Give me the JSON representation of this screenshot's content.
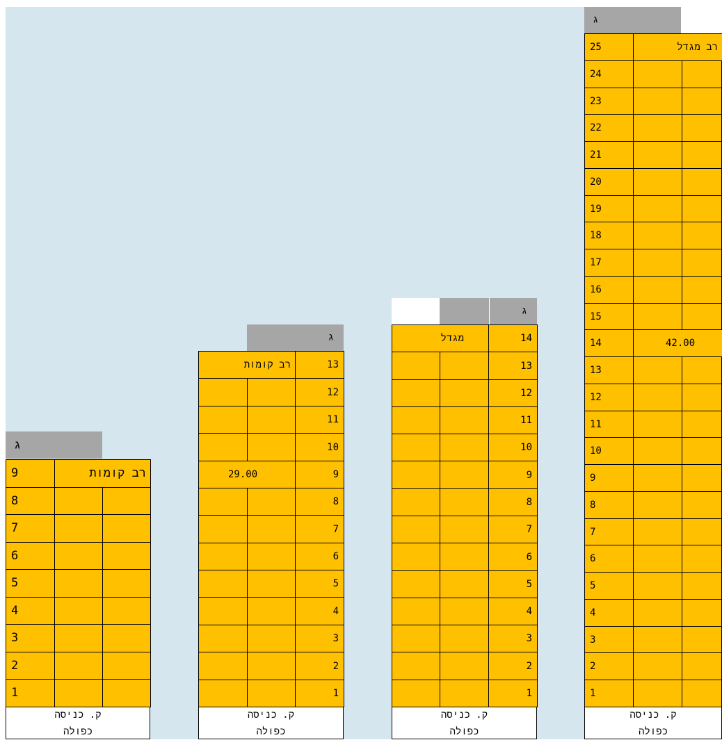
{
  "buildings": [
    {
      "id": "b1",
      "roof_label": "ג",
      "type_label": "רב קומות",
      "height_label": "",
      "floors_top": 9,
      "base_line1": "ק. כניסה",
      "base_line2": "כפולה"
    },
    {
      "id": "b2",
      "roof_label": "ג",
      "type_label": "רב קומות",
      "height_label": "29.00",
      "floors_top": 13,
      "base_line1": "ק. כניסה",
      "base_line2": "כפולה"
    },
    {
      "id": "b3",
      "roof_label": "ג",
      "type_label": "מגדל",
      "height_label": "",
      "floors_top": 14,
      "base_line1": "ק. כניסה",
      "base_line2": "כפולה"
    },
    {
      "id": "b4",
      "roof_label": "ג",
      "type_label": "רב מגדל",
      "height_label": "42.00",
      "floors_top": 25,
      "base_line1": "ק. כניסה",
      "base_line2": "כפולה"
    }
  ],
  "floor_numbers": [
    "1",
    "2",
    "3",
    "4",
    "5",
    "6",
    "7",
    "8",
    "9",
    "10",
    "11",
    "12",
    "13",
    "14",
    "15",
    "16",
    "17",
    "18",
    "19",
    "20",
    "21",
    "22",
    "23",
    "24",
    "25"
  ],
  "colors": {
    "sky": "#d6e6ee",
    "floor": "#ffc000",
    "roof": "#a6a6a6",
    "base": "#ffffff"
  }
}
